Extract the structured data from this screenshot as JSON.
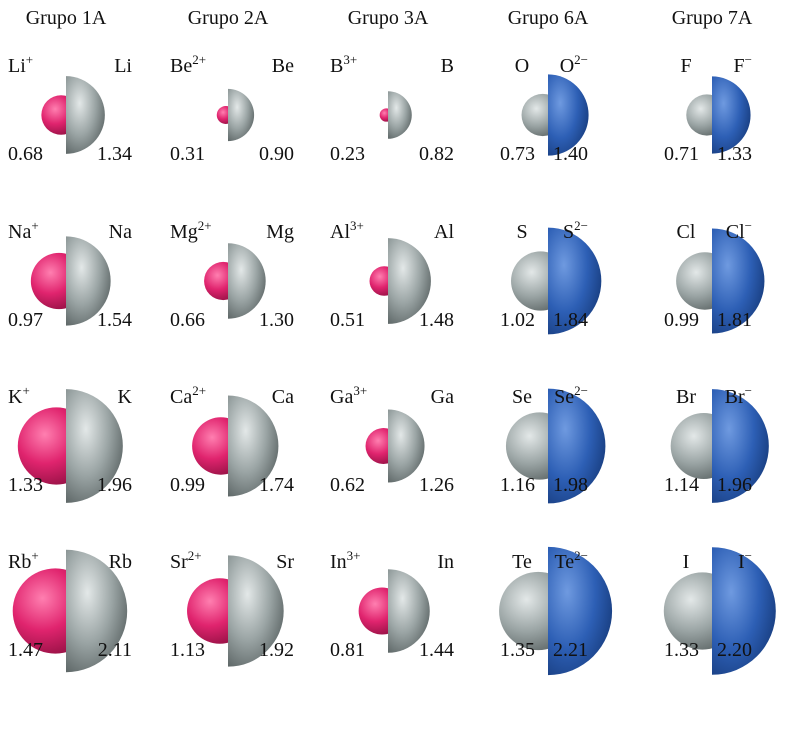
{
  "groups": [
    {
      "title": "Grupo 1A",
      "rows": [
        {
          "ion": {
            "symbol": "Li",
            "charge": "+"
          },
          "atom": "Li",
          "ion_radius": 0.68,
          "atom_radius": 1.34
        },
        {
          "ion": {
            "symbol": "Na",
            "charge": "+"
          },
          "atom": "Na",
          "ion_radius": 0.97,
          "atom_radius": 1.54
        },
        {
          "ion": {
            "symbol": "K",
            "charge": "+"
          },
          "atom": "K",
          "ion_radius": 1.33,
          "atom_radius": 1.96
        },
        {
          "ion": {
            "symbol": "Rb",
            "charge": "+"
          },
          "atom": "Rb",
          "ion_radius": 1.47,
          "atom_radius": 2.11
        }
      ]
    },
    {
      "title": "Grupo 2A",
      "rows": [
        {
          "ion": {
            "symbol": "Be",
            "charge": "2+"
          },
          "atom": "Be",
          "ion_radius": 0.31,
          "atom_radius": {
            "value": 0.9,
            "label": "0.90"
          }
        },
        {
          "ion": {
            "symbol": "Mg",
            "charge": "2+"
          },
          "atom": "Mg",
          "ion_radius": 0.66,
          "atom_radius": {
            "value": 1.3,
            "label": "1.30"
          }
        },
        {
          "ion": {
            "symbol": "Ca",
            "charge": "2+"
          },
          "atom": "Ca",
          "ion_radius": 0.99,
          "atom_radius": 1.74
        },
        {
          "ion": {
            "symbol": "Sr",
            "charge": "2+"
          },
          "atom": "Sr",
          "ion_radius": 1.13,
          "atom_radius": 1.92
        }
      ]
    },
    {
      "title": "Grupo 3A",
      "rows": [
        {
          "ion": {
            "symbol": "B",
            "charge": "3+"
          },
          "atom": "B",
          "ion_radius": 0.23,
          "atom_radius": 0.82
        },
        {
          "ion": {
            "symbol": "Al",
            "charge": "3+"
          },
          "atom": "Al",
          "ion_radius": 0.51,
          "atom_radius": 1.48
        },
        {
          "ion": {
            "symbol": "Ga",
            "charge": "3+"
          },
          "atom": "Ga",
          "ion_radius": 0.62,
          "atom_radius": 1.26
        },
        {
          "ion": {
            "symbol": "In",
            "charge": "3+"
          },
          "atom": "In",
          "ion_radius": 0.81,
          "atom_radius": 1.44
        }
      ]
    },
    {
      "title": "Grupo 6A",
      "rows": [
        {
          "ion": {
            "symbol": "O",
            "charge": "2−"
          },
          "atom": "O",
          "ion_radius": {
            "value": 1.4,
            "label": "1.40"
          },
          "atom_radius": 0.73
        },
        {
          "ion": {
            "symbol": "S",
            "charge": "2−"
          },
          "atom": "S",
          "ion_radius": 1.84,
          "atom_radius": 1.02
        },
        {
          "ion": {
            "symbol": "Se",
            "charge": "2−"
          },
          "atom": "Se",
          "ion_radius": 1.98,
          "atom_radius": 1.16
        },
        {
          "ion": {
            "symbol": "Te",
            "charge": "2−"
          },
          "atom": "Te",
          "ion_radius": 2.21,
          "atom_radius": 1.35
        }
      ]
    },
    {
      "title": "Grupo 7A",
      "rows": [
        {
          "ion": {
            "symbol": "F",
            "charge": "−"
          },
          "atom": "F",
          "ion_radius": 1.33,
          "atom_radius": 0.71
        },
        {
          "ion": {
            "symbol": "Cl",
            "charge": "−"
          },
          "atom": "Cl",
          "ion_radius": 1.81,
          "atom_radius": 0.99
        },
        {
          "ion": {
            "symbol": "Br",
            "charge": "−"
          },
          "atom": "Br",
          "ion_radius": 1.96,
          "atom_radius": 1.14
        },
        {
          "ion": {
            "symbol": "I",
            "charge": "−"
          },
          "atom": "I",
          "ion_radius": {
            "value": 2.2,
            "label": "2.20"
          },
          "atom_radius": 1.33
        }
      ]
    }
  ]
}
